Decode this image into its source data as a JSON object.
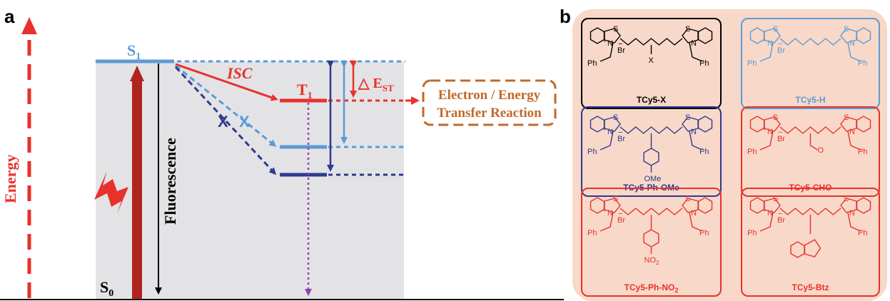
{
  "colors": {
    "red": "#e8312b",
    "dark_red": "#b0241e",
    "light_blue": "#5b9bd5",
    "dark_blue": "#2e3a91",
    "purple": "#8e44ad",
    "orange_brown": "#c0692a",
    "gray_bg": "#e3e3e6",
    "pink_bg": "#f8d8c8",
    "black": "#000000"
  },
  "panel_a": {
    "letter": "a",
    "energy_label": "Energy",
    "s1_label": "S",
    "s1_sub": "1",
    "s0_label": "S",
    "s0_sub": "0",
    "fluorescence_label": "Fluorescence",
    "isc_label": "ISC",
    "t1_label": "T",
    "t1_sub": "1",
    "est_label": "△ E",
    "est_sub": "ST",
    "cross_mark": "X",
    "transfer_line1": "Electron / Energy",
    "transfer_line2": "Transfer Reaction"
  },
  "panel_b": {
    "letter": "b",
    "compounds": [
      {
        "name": "TCy5-X",
        "color": "#000000",
        "substituent": "X"
      },
      {
        "name": "TCy5-H",
        "color": "#5b9bd5",
        "substituent": ""
      },
      {
        "name": "TCy5-Ph-OMe",
        "color": "#2e3a91",
        "substituent": "OMe"
      },
      {
        "name": "TCy5-CHO",
        "color": "#e8312b",
        "substituent": "O"
      },
      {
        "name": "TCy5-Ph-NO",
        "name_sub": "2",
        "color": "#e8312b",
        "substituent": "NO",
        "substituent_sub": "2"
      },
      {
        "name": "TCy5-Btz",
        "color": "#e8312b",
        "substituent": ""
      }
    ],
    "atoms": {
      "s": "S",
      "n": "N",
      "plus": "+",
      "br": "Br",
      "minus": "−",
      "ph": "Ph"
    }
  }
}
